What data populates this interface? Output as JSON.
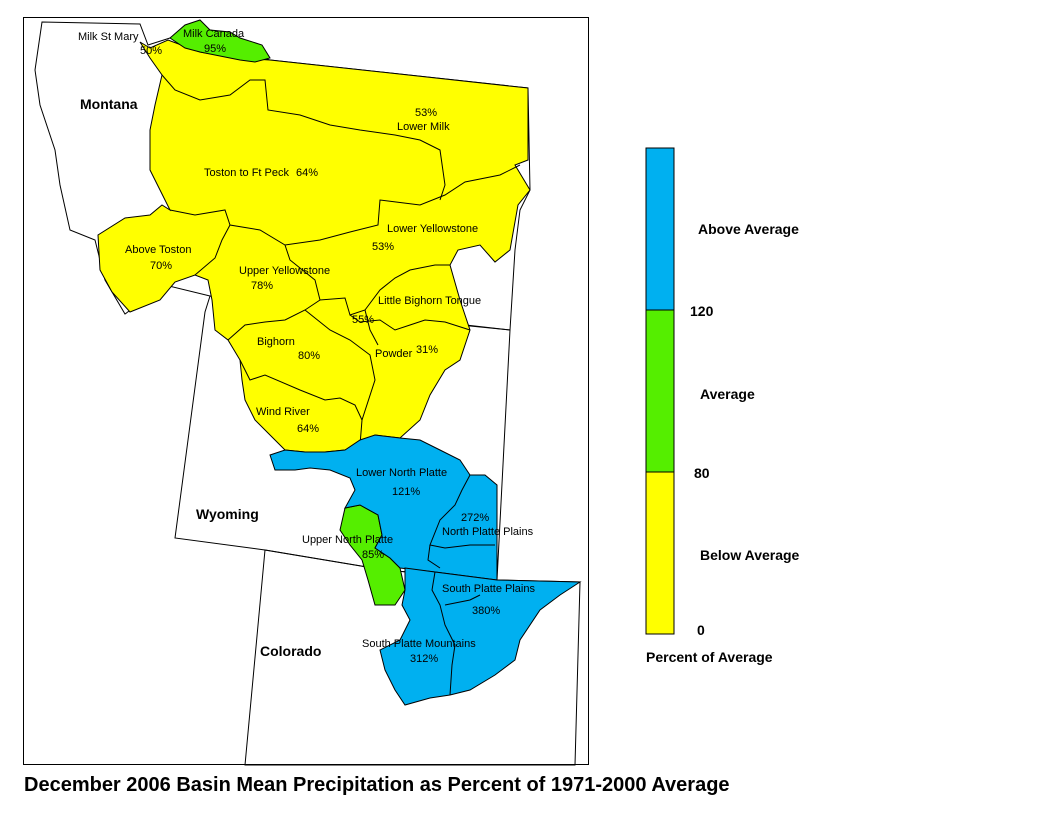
{
  "title": "December 2006 Basin Mean Precipitation as Percent of 1971-2000 Average",
  "colors": {
    "above": "#00b0f0",
    "average": "#55ee00",
    "below": "#ffff00",
    "outline": "#000000"
  },
  "states": [
    "Montana",
    "Wyoming",
    "Colorado"
  ],
  "basins": [
    {
      "name": "Milk St Mary",
      "value": "50%",
      "category": "below"
    },
    {
      "name": "Milk Canada",
      "value": "95%",
      "category": "average"
    },
    {
      "name": "Lower Milk",
      "value": "53%",
      "category": "below"
    },
    {
      "name": "Toston to Ft Peck",
      "value": "64%",
      "category": "below"
    },
    {
      "name": "Above Toston",
      "value": "70%",
      "category": "below"
    },
    {
      "name": "Lower Yellowstone",
      "value": "53%",
      "category": "below"
    },
    {
      "name": "Upper Yellowstone",
      "value": "78%",
      "category": "below"
    },
    {
      "name": "Little Bighorn Tongue",
      "value": "55%",
      "category": "below"
    },
    {
      "name": "Bighorn",
      "value": "80%",
      "category": "below"
    },
    {
      "name": "Powder",
      "value": "31%",
      "category": "below"
    },
    {
      "name": "Wind River",
      "value": "64%",
      "category": "below"
    },
    {
      "name": "Lower North Platte",
      "value": "121%",
      "category": "above"
    },
    {
      "name": "North Platte Plains",
      "value": "272%",
      "category": "above"
    },
    {
      "name": "Upper North Platte",
      "value": "85%",
      "category": "average"
    },
    {
      "name": "South Platte Plains",
      "value": "380%",
      "category": "above"
    },
    {
      "name": "South Platte Mountains",
      "value": "312%",
      "category": "above"
    }
  ],
  "legend": {
    "title": "Percent of Average",
    "categories": [
      {
        "label": "Above Average",
        "color": "#00b0f0",
        "range": [
          120,
          null
        ]
      },
      {
        "label": "Average",
        "color": "#55ee00",
        "range": [
          80,
          120
        ]
      },
      {
        "label": "Below Average",
        "color": "#ffff00",
        "range": [
          0,
          80
        ]
      }
    ],
    "ticks": [
      "120",
      "80",
      "0"
    ]
  }
}
